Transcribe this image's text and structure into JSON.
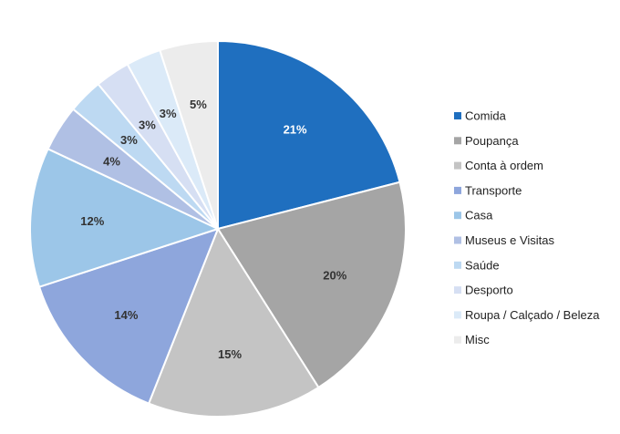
{
  "chart_data": {
    "type": "pie",
    "title": "",
    "legend_position": "right",
    "start_angle_deg": 0,
    "direction": "clockwise",
    "slices": [
      {
        "label": "Comida",
        "value": 21,
        "display": "21%",
        "color": "#1f6fbf",
        "label_dark_bg": true
      },
      {
        "label": "Poupança",
        "value": 20,
        "display": "20%",
        "color": "#a5a5a5",
        "label_dark_bg": false
      },
      {
        "label": "Conta à ordem",
        "value": 15,
        "display": "15%",
        "color": "#c4c4c4",
        "label_dark_bg": false
      },
      {
        "label": "Transporte",
        "value": 14,
        "display": "14%",
        "color": "#8ea6dc",
        "label_dark_bg": false
      },
      {
        "label": "Casa",
        "value": 12,
        "display": "12%",
        "color": "#9cc6e8",
        "label_dark_bg": false
      },
      {
        "label": "Museus e Visitas",
        "value": 4,
        "display": "4%",
        "color": "#b0c0e4",
        "label_dark_bg": false
      },
      {
        "label": "Saúde",
        "value": 3,
        "display": "3%",
        "color": "#bdd9f2",
        "label_dark_bg": false
      },
      {
        "label": "Desporto",
        "value": 3,
        "display": "3%",
        "color": "#d6dff3",
        "label_dark_bg": false
      },
      {
        "label": "Roupa / Calçado / Beleza",
        "value": 3,
        "display": "3%",
        "color": "#dbeaf8",
        "label_dark_bg": false
      },
      {
        "label": "Misc",
        "value": 5,
        "display": "5%",
        "color": "#ececec",
        "label_dark_bg": false
      }
    ]
  }
}
